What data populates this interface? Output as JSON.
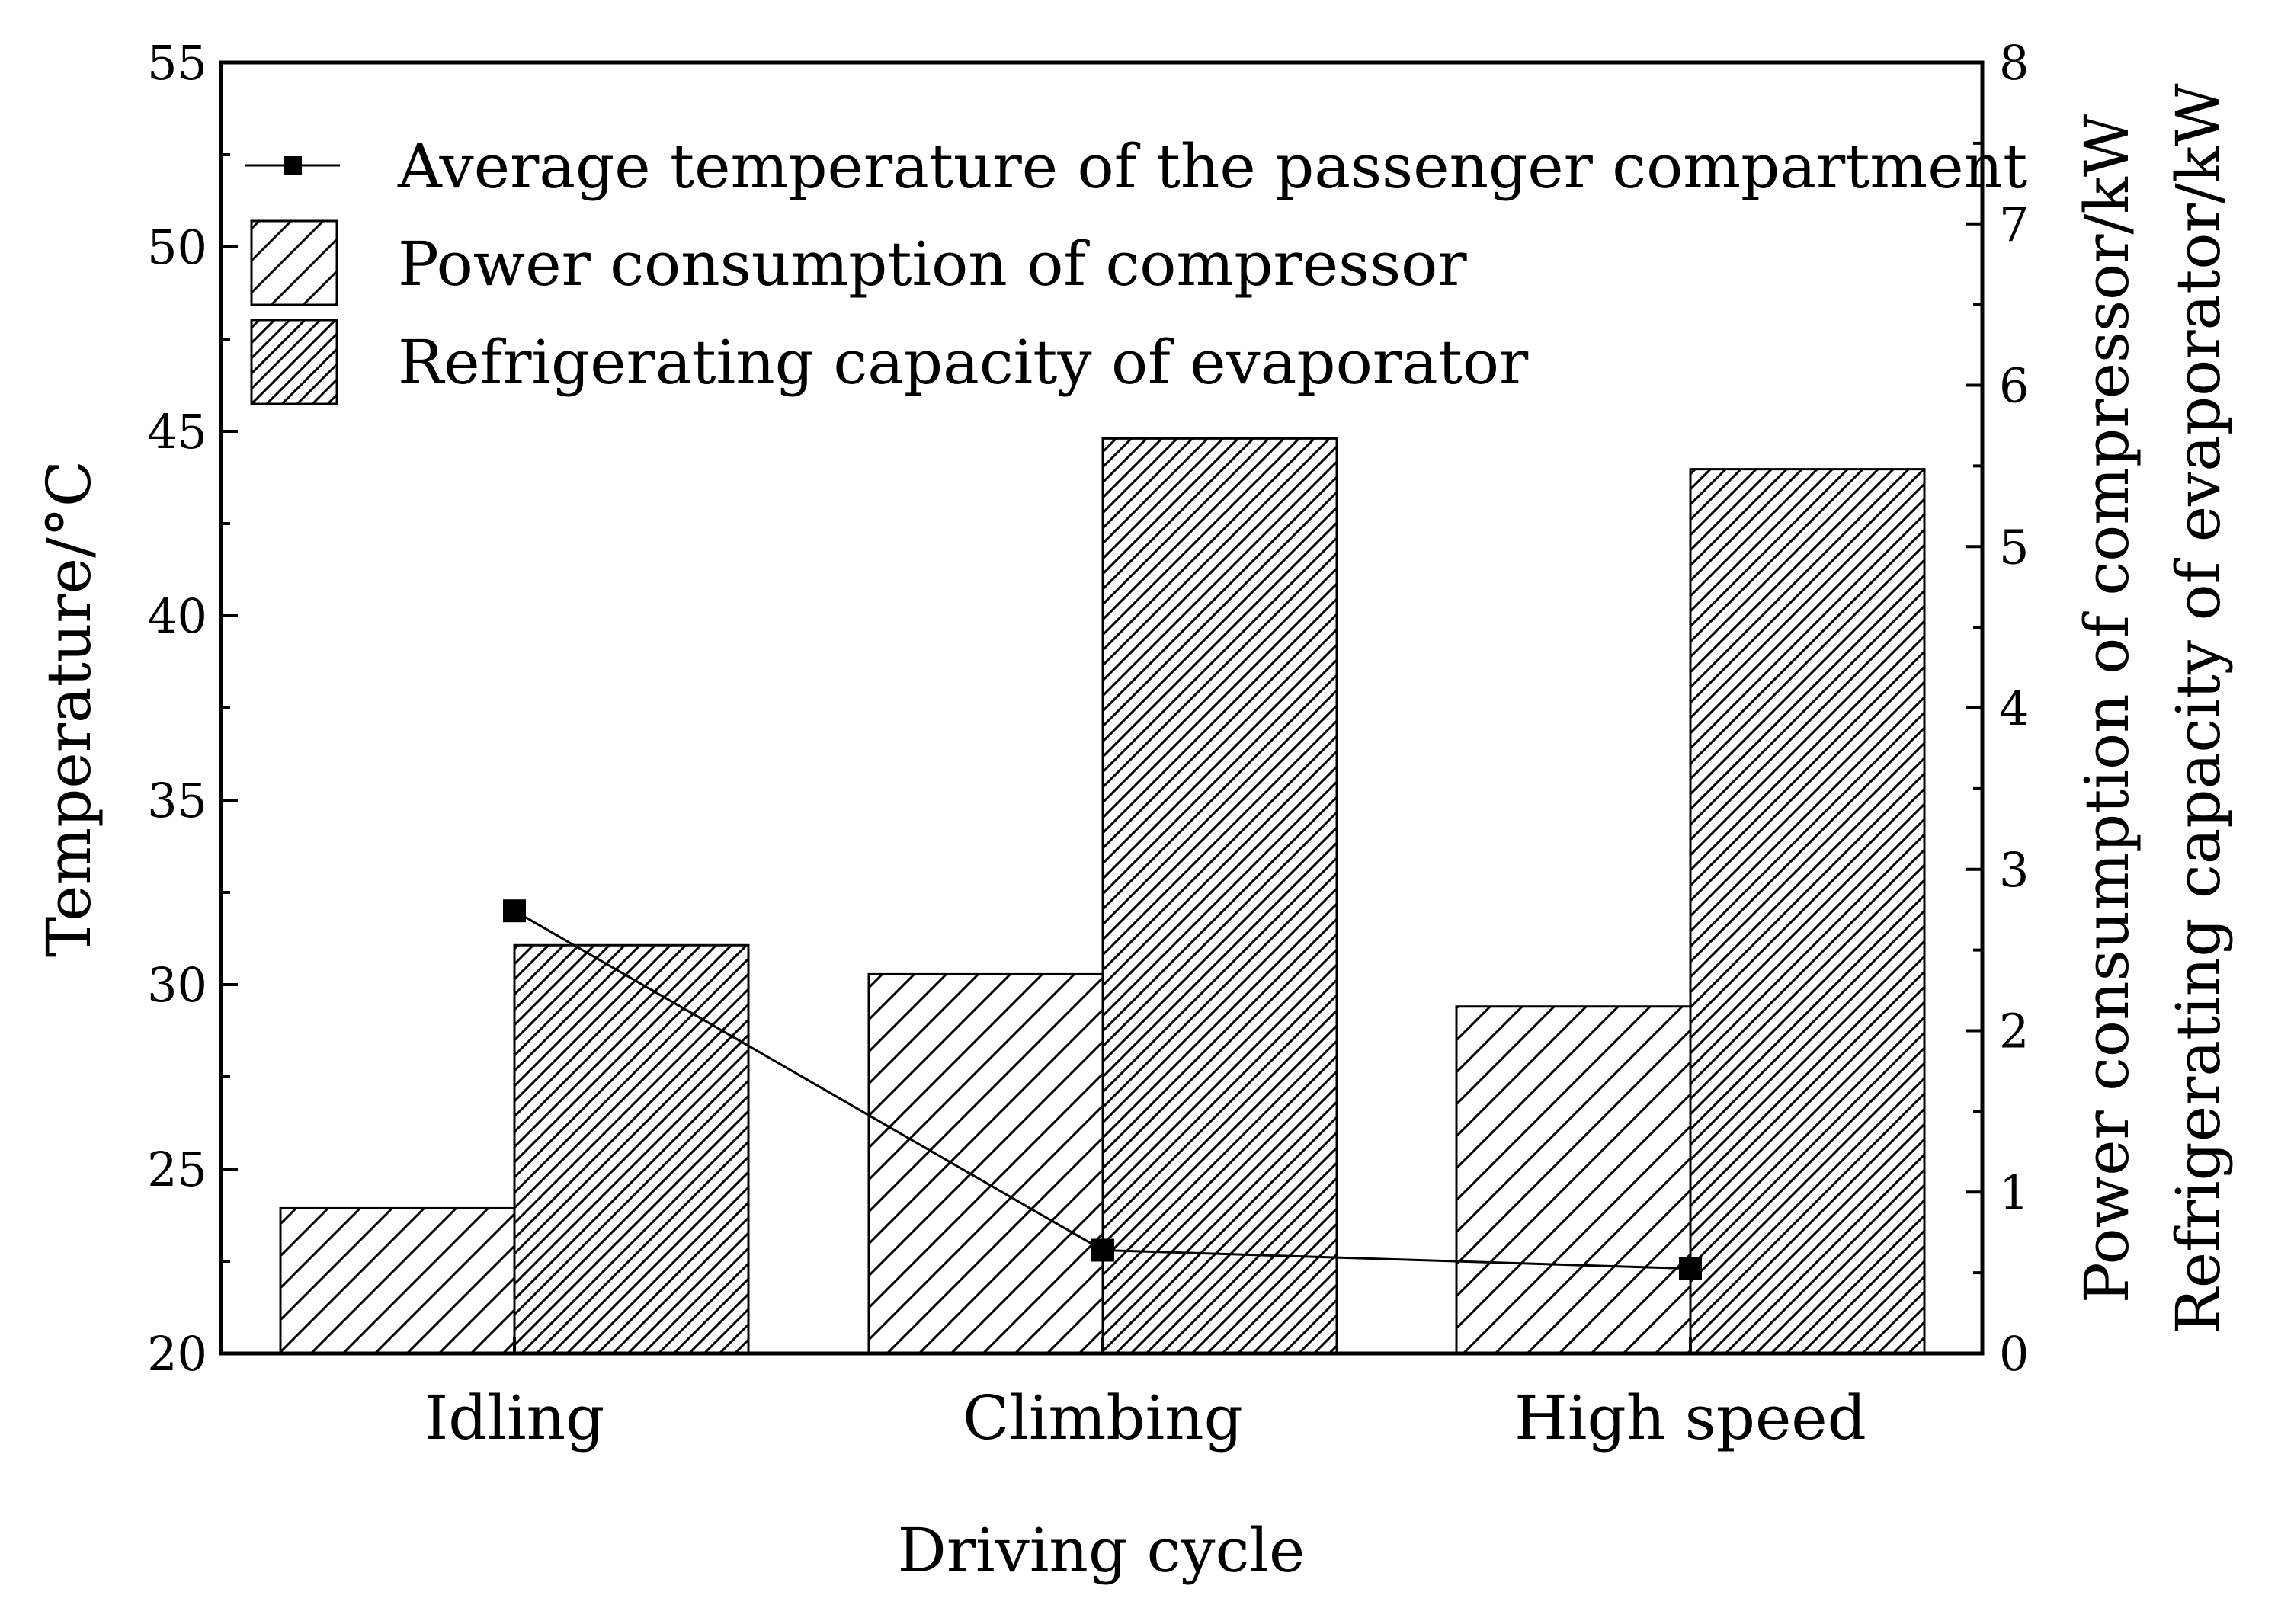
{
  "chart_data": {
    "type": "bar",
    "xlabel": "Driving cycle",
    "ylabel": "Temperature/°C",
    "y2label_1": "Power consumption of compressor/kW",
    "y2label_2": "Refrigerating capacity of evaporator/kW",
    "categories": [
      "Idling",
      "Climbing",
      "High speed"
    ],
    "ylim": [
      20,
      55
    ],
    "yticks": [
      "20",
      "25",
      "30",
      "35",
      "40",
      "45",
      "50",
      "55"
    ],
    "y2lim": [
      0,
      8
    ],
    "y2ticks": [
      "0",
      "1",
      "2",
      "3",
      "4",
      "5",
      "6",
      "7",
      "8"
    ],
    "legend_position": "top-left",
    "series": [
      {
        "name": "Power consumption of compressor",
        "kind": "bar",
        "axis": "right",
        "pattern": "sparse-hatch",
        "values": [
          0.9,
          2.35,
          2.15
        ]
      },
      {
        "name": "Refrigerating capacity of evaporator",
        "kind": "bar",
        "axis": "right",
        "pattern": "dense-hatch",
        "values": [
          2.53,
          5.67,
          5.48
        ]
      },
      {
        "name": "Average temperature of the passenger compartment",
        "kind": "line",
        "axis": "left",
        "marker": "square",
        "values": [
          32.0,
          22.8,
          22.3
        ]
      }
    ],
    "legend_order": [
      2,
      0,
      1
    ]
  }
}
